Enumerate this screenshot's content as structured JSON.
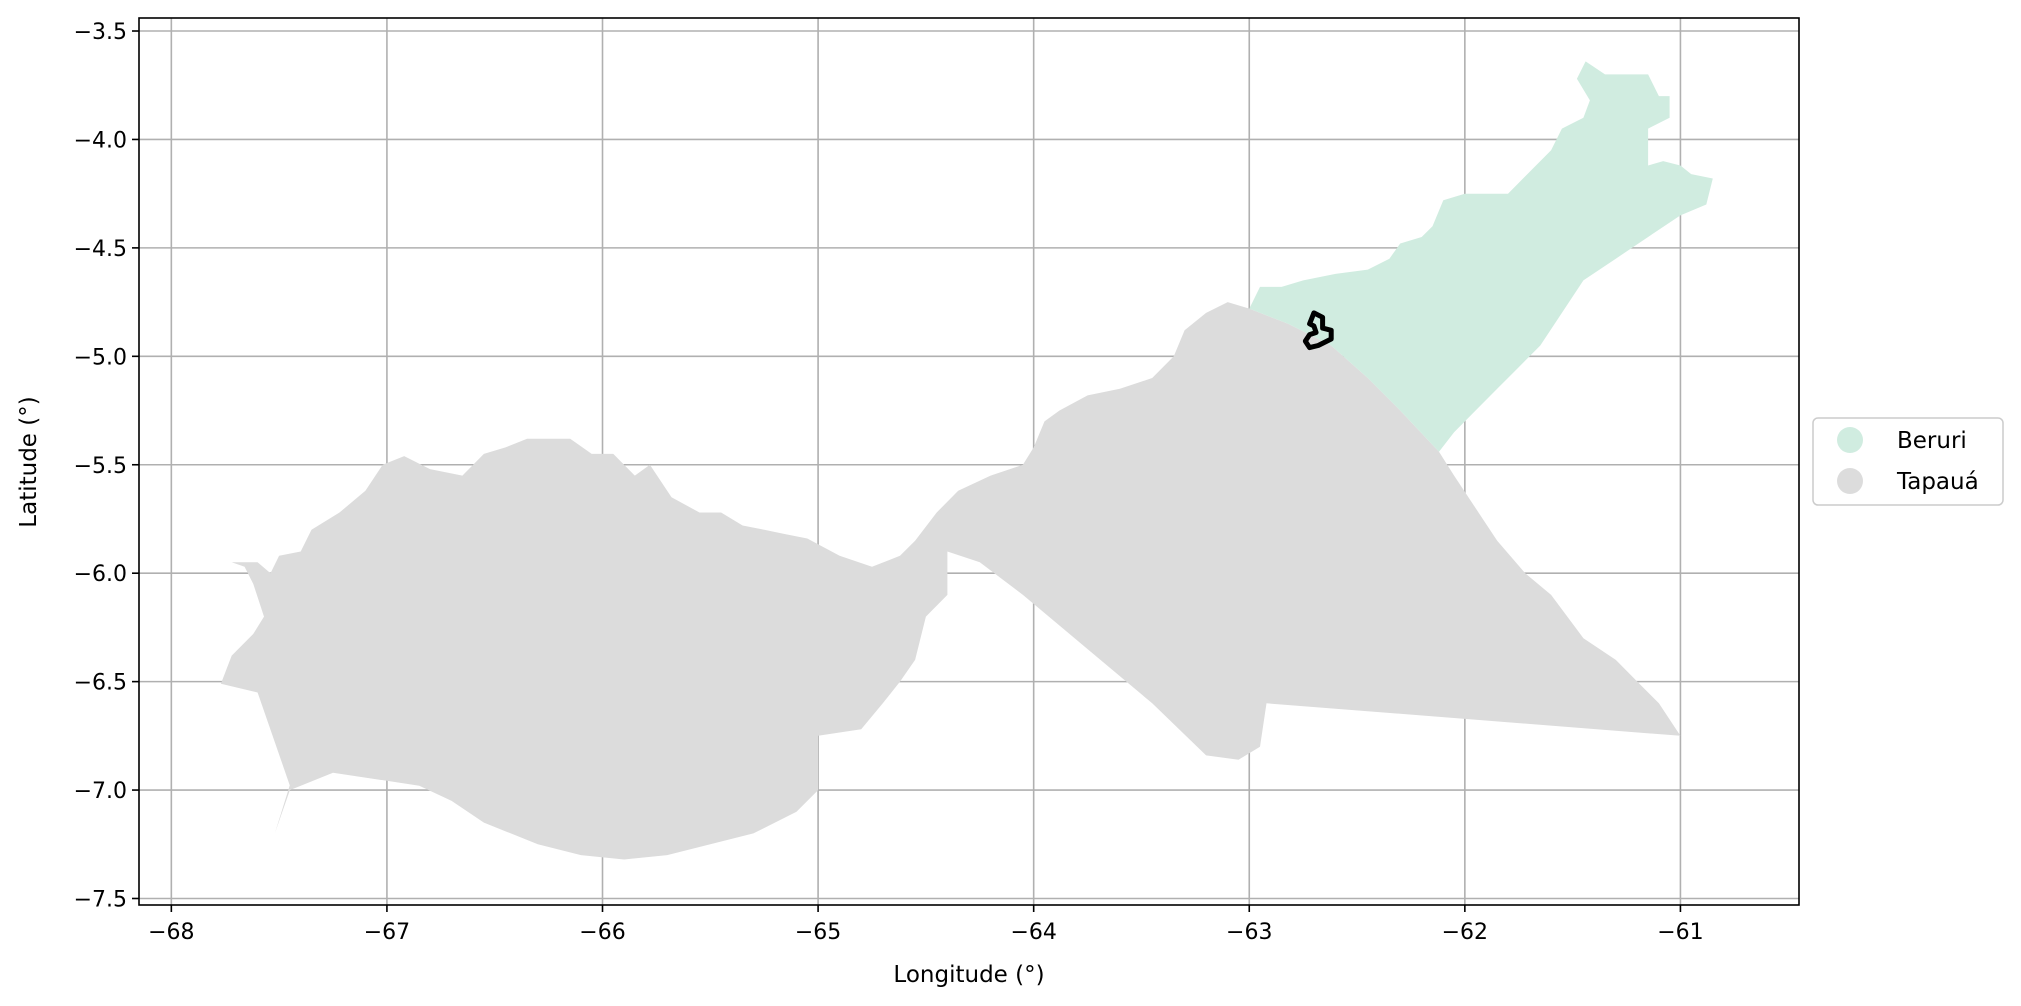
{
  "chart_data": {
    "type": "map",
    "xlabel": "Longitude (°)",
    "ylabel": "Latitude (°)",
    "xlim": [
      -68.15,
      -60.45
    ],
    "ylim": [
      -7.53,
      -3.44
    ],
    "xticks": [
      -68,
      -67,
      -66,
      -65,
      -64,
      -63,
      -62,
      -61
    ],
    "yticks": [
      -3.5,
      -4.0,
      -4.5,
      -5.0,
      -5.5,
      -6.0,
      -6.5,
      -7.0,
      -7.5
    ],
    "xtick_labels": [
      "−68",
      "−67",
      "−66",
      "−65",
      "−64",
      "−63",
      "−62",
      "−61"
    ],
    "ytick_labels": [
      "−3.5",
      "−4.0",
      "−4.5",
      "−5.0",
      "−5.5",
      "−6.0",
      "−6.5",
      "−7.0",
      "−7.5"
    ],
    "grid": true,
    "legend_placement": "outside-right",
    "legend": [
      {
        "name": "Beruri",
        "color": "#d0ece0"
      },
      {
        "name": "Tapauá",
        "color": "#dcdcdc"
      }
    ],
    "regions": [
      {
        "name": "Tapauá",
        "color": "#dcdcdc",
        "coords": [
          [
            -67.77,
            -6.51
          ],
          [
            -67.72,
            -6.38
          ],
          [
            -67.62,
            -6.28
          ],
          [
            -67.57,
            -6.2
          ],
          [
            -67.62,
            -6.05
          ],
          [
            -67.66,
            -5.97
          ],
          [
            -67.72,
            -5.95
          ],
          [
            -67.6,
            -5.95
          ],
          [
            -67.54,
            -6.0
          ],
          [
            -67.5,
            -5.92
          ],
          [
            -67.4,
            -5.9
          ],
          [
            -67.35,
            -5.8
          ],
          [
            -67.22,
            -5.72
          ],
          [
            -67.1,
            -5.62
          ],
          [
            -67.02,
            -5.5
          ],
          [
            -66.92,
            -5.46
          ],
          [
            -66.8,
            -5.52
          ],
          [
            -66.65,
            -5.55
          ],
          [
            -66.55,
            -5.45
          ],
          [
            -66.45,
            -5.42
          ],
          [
            -66.35,
            -5.38
          ],
          [
            -66.15,
            -5.38
          ],
          [
            -66.05,
            -5.45
          ],
          [
            -65.95,
            -5.45
          ],
          [
            -65.85,
            -5.55
          ],
          [
            -65.78,
            -5.5
          ],
          [
            -65.68,
            -5.65
          ],
          [
            -65.55,
            -5.72
          ],
          [
            -65.45,
            -5.72
          ],
          [
            -65.35,
            -5.78
          ],
          [
            -65.25,
            -5.8
          ],
          [
            -65.15,
            -5.82
          ],
          [
            -65.05,
            -5.84
          ],
          [
            -64.9,
            -5.92
          ],
          [
            -64.75,
            -5.97
          ],
          [
            -64.62,
            -5.92
          ],
          [
            -64.55,
            -5.85
          ],
          [
            -64.45,
            -5.72
          ],
          [
            -64.35,
            -5.62
          ],
          [
            -64.2,
            -5.55
          ],
          [
            -64.05,
            -5.5
          ],
          [
            -64.0,
            -5.42
          ],
          [
            -63.95,
            -5.3
          ],
          [
            -63.88,
            -5.25
          ],
          [
            -63.75,
            -5.18
          ],
          [
            -63.6,
            -5.15
          ],
          [
            -63.45,
            -5.1
          ],
          [
            -63.35,
            -5.0
          ],
          [
            -63.3,
            -4.88
          ],
          [
            -63.2,
            -4.8
          ],
          [
            -63.1,
            -4.75
          ],
          [
            -63.0,
            -4.78
          ],
          [
            -62.82,
            -4.85
          ],
          [
            -62.62,
            -4.95
          ],
          [
            -62.45,
            -5.1
          ],
          [
            -62.3,
            -5.25
          ],
          [
            -62.12,
            -5.44
          ],
          [
            -62.05,
            -5.55
          ],
          [
            -61.95,
            -5.7
          ],
          [
            -61.85,
            -5.85
          ],
          [
            -61.72,
            -6.0
          ],
          [
            -61.6,
            -6.1
          ],
          [
            -61.45,
            -6.3
          ],
          [
            -61.3,
            -6.4
          ],
          [
            -61.2,
            -6.5
          ],
          [
            -61.1,
            -6.6
          ],
          [
            -61.0,
            -6.75
          ],
          [
            -62.92,
            -6.6
          ],
          [
            -62.95,
            -6.8
          ],
          [
            -63.05,
            -6.86
          ],
          [
            -63.2,
            -6.84
          ],
          [
            -63.45,
            -6.6
          ],
          [
            -63.75,
            -6.35
          ],
          [
            -64.05,
            -6.1
          ],
          [
            -64.25,
            -5.95
          ],
          [
            -64.4,
            -5.9
          ],
          [
            -64.4,
            -6.1
          ],
          [
            -64.5,
            -6.2
          ],
          [
            -64.55,
            -6.4
          ],
          [
            -64.62,
            -6.5
          ],
          [
            -64.7,
            -6.6
          ],
          [
            -64.8,
            -6.72
          ],
          [
            -65.0,
            -6.75
          ],
          [
            -65.0,
            -7.0
          ],
          [
            -65.1,
            -7.1
          ],
          [
            -65.3,
            -7.2
          ],
          [
            -65.5,
            -7.25
          ],
          [
            -65.7,
            -7.3
          ],
          [
            -65.9,
            -7.32
          ],
          [
            -66.1,
            -7.3
          ],
          [
            -66.3,
            -7.25
          ],
          [
            -66.55,
            -7.15
          ],
          [
            -66.7,
            -7.05
          ],
          [
            -66.85,
            -6.98
          ],
          [
            -67.05,
            -6.95
          ],
          [
            -67.25,
            -6.92
          ],
          [
            -67.45,
            -7.0
          ],
          [
            -67.52,
            -7.2
          ],
          [
            -67.42,
            -6.88
          ],
          [
            -67.35,
            -6.85
          ],
          [
            -67.2,
            -6.8
          ],
          [
            -67.0,
            -6.82
          ],
          [
            -66.8,
            -6.78
          ],
          [
            -66.6,
            -6.78
          ],
          [
            -66.45,
            -6.72
          ],
          [
            -66.3,
            -6.62
          ],
          [
            -66.2,
            -6.6
          ],
          [
            -66.05,
            -6.58
          ],
          [
            -65.92,
            -6.65
          ],
          [
            -65.8,
            -6.6
          ],
          [
            -65.7,
            -6.5
          ],
          [
            -65.6,
            -6.42
          ],
          [
            -65.55,
            -6.5
          ],
          [
            -65.65,
            -6.65
          ],
          [
            -65.8,
            -6.74
          ],
          [
            -66.0,
            -6.78
          ],
          [
            -66.15,
            -6.82
          ],
          [
            -66.3,
            -6.85
          ],
          [
            -66.6,
            -6.82
          ],
          [
            -66.8,
            -6.85
          ],
          [
            -67.0,
            -6.88
          ],
          [
            -67.3,
            -6.9
          ],
          [
            -67.45,
            -6.98
          ],
          [
            -67.6,
            -6.55
          ]
        ]
      },
      {
        "name": "Beruri",
        "color": "#d0ece0",
        "coords": [
          [
            -63.0,
            -4.78
          ],
          [
            -62.95,
            -4.68
          ],
          [
            -62.85,
            -4.68
          ],
          [
            -62.75,
            -4.65
          ],
          [
            -62.6,
            -4.62
          ],
          [
            -62.45,
            -4.6
          ],
          [
            -62.35,
            -4.55
          ],
          [
            -62.3,
            -4.48
          ],
          [
            -62.2,
            -4.45
          ],
          [
            -62.15,
            -4.4
          ],
          [
            -62.1,
            -4.28
          ],
          [
            -62.0,
            -4.25
          ],
          [
            -61.9,
            -4.25
          ],
          [
            -61.8,
            -4.25
          ],
          [
            -61.7,
            -4.15
          ],
          [
            -61.6,
            -4.05
          ],
          [
            -61.55,
            -3.95
          ],
          [
            -61.45,
            -3.9
          ],
          [
            -61.42,
            -3.82
          ],
          [
            -61.48,
            -3.72
          ],
          [
            -61.44,
            -3.64
          ],
          [
            -61.38,
            -3.68
          ],
          [
            -61.35,
            -3.7
          ],
          [
            -61.15,
            -3.7
          ],
          [
            -61.1,
            -3.8
          ],
          [
            -61.05,
            -3.8
          ],
          [
            -61.05,
            -3.9
          ],
          [
            -61.15,
            -3.95
          ],
          [
            -61.15,
            -4.12
          ],
          [
            -61.08,
            -4.1
          ],
          [
            -61.0,
            -4.12
          ],
          [
            -60.95,
            -4.16
          ],
          [
            -60.85,
            -4.18
          ],
          [
            -60.88,
            -4.3
          ],
          [
            -61.0,
            -4.35
          ],
          [
            -61.15,
            -4.45
          ],
          [
            -61.3,
            -4.55
          ],
          [
            -61.45,
            -4.65
          ],
          [
            -61.55,
            -4.8
          ],
          [
            -61.65,
            -4.95
          ],
          [
            -61.75,
            -5.05
          ],
          [
            -61.85,
            -5.15
          ],
          [
            -61.95,
            -5.25
          ],
          [
            -62.05,
            -5.35
          ],
          [
            -62.12,
            -5.44
          ],
          [
            -62.3,
            -5.25
          ],
          [
            -62.45,
            -5.1
          ],
          [
            -62.62,
            -4.95
          ],
          [
            -62.82,
            -4.85
          ]
        ]
      }
    ],
    "highlight": {
      "name": "",
      "coords": [
        [
          -62.72,
          -4.85
        ],
        [
          -62.7,
          -4.8
        ],
        [
          -62.66,
          -4.82
        ],
        [
          -62.66,
          -4.87
        ],
        [
          -62.62,
          -4.88
        ],
        [
          -62.62,
          -4.92
        ],
        [
          -62.68,
          -4.95
        ],
        [
          -62.72,
          -4.96
        ],
        [
          -62.74,
          -4.93
        ],
        [
          -62.72,
          -4.9
        ],
        [
          -62.69,
          -4.89
        ],
        [
          -62.7,
          -4.86
        ]
      ]
    }
  }
}
